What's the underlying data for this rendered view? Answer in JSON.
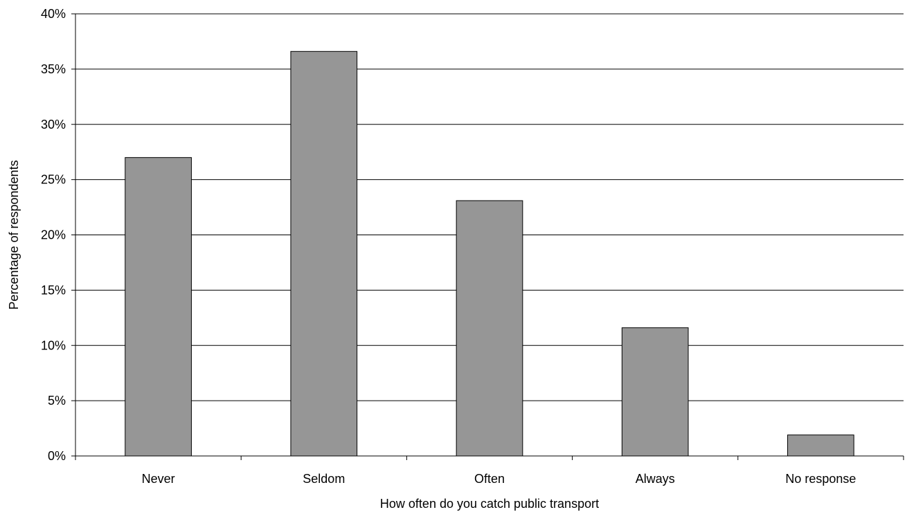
{
  "chart_data": {
    "type": "bar",
    "title": "",
    "xlabel": "How often do you catch public transport",
    "ylabel": "Percentage of respondents",
    "categories": [
      "Never",
      "Seldom",
      "Often",
      "Always",
      "No response"
    ],
    "values": [
      27.0,
      36.6,
      23.1,
      11.6,
      1.9
    ],
    "ylim": [
      0,
      40
    ],
    "yticks": [
      0,
      5,
      10,
      15,
      20,
      25,
      30,
      35,
      40
    ],
    "ytick_labels": [
      "0%",
      "5%",
      "10%",
      "15%",
      "20%",
      "25%",
      "30%",
      "35%",
      "40%"
    ],
    "grid": true,
    "legend": "none",
    "bar_color": "#969696"
  }
}
